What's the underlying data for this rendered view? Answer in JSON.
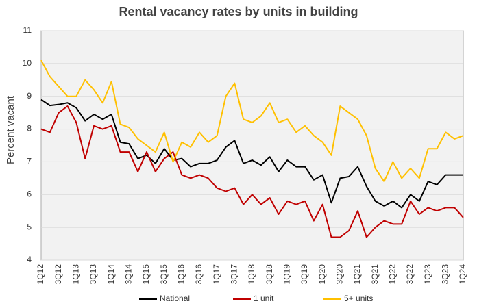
{
  "chart_data": {
    "type": "line",
    "title": "Rental vacancy rates by units in building",
    "y_label": "Percent vacant",
    "categories": [
      "1Q12",
      null,
      "3Q12",
      null,
      "1Q13",
      null,
      "3Q13",
      null,
      "1Q14",
      null,
      "3Q14",
      null,
      "1Q15",
      null,
      "3Q15",
      null,
      "1Q16",
      null,
      "3Q16",
      null,
      "1Q17",
      null,
      "3Q17",
      null,
      "1Q18",
      null,
      "3Q18",
      null,
      "1Q19",
      null,
      "3Q19",
      null,
      "1Q20",
      null,
      "3Q20",
      null,
      "1Q21",
      null,
      "3Q21",
      null,
      "1Q22",
      null,
      "3Q22",
      null,
      "1Q23",
      null,
      "3Q23",
      null,
      "1Q24"
    ],
    "series": [
      {
        "name": "National",
        "color": "#000000",
        "values": [
          8.9,
          8.72,
          8.75,
          8.8,
          8.65,
          8.25,
          8.45,
          8.3,
          8.45,
          7.6,
          7.55,
          7.1,
          7.2,
          6.95,
          7.4,
          7.05,
          7.1,
          6.85,
          6.95,
          6.95,
          7.05,
          7.45,
          7.65,
          6.95,
          7.05,
          6.9,
          7.15,
          6.7,
          7.05,
          6.85,
          6.85,
          6.45,
          6.6,
          5.75,
          6.5,
          6.55,
          6.85,
          6.25,
          5.8,
          5.65,
          5.8,
          5.6,
          6.0,
          5.8,
          6.4,
          6.3,
          6.6,
          6.6,
          6.6
        ]
      },
      {
        "name": "1 unit",
        "color": "#c00000",
        "values": [
          8.0,
          7.9,
          8.5,
          8.7,
          8.2,
          7.1,
          8.1,
          8.0,
          8.1,
          7.3,
          7.3,
          6.7,
          7.3,
          6.7,
          7.1,
          7.3,
          6.6,
          6.5,
          6.6,
          6.5,
          6.2,
          6.1,
          6.2,
          5.7,
          6.0,
          5.7,
          5.9,
          5.4,
          5.8,
          5.7,
          5.8,
          5.2,
          5.7,
          4.7,
          4.7,
          4.9,
          5.5,
          4.7,
          5.0,
          5.2,
          5.1,
          5.1,
          5.8,
          5.4,
          5.6,
          5.5,
          5.6,
          5.6,
          5.3
        ]
      },
      {
        "name": "5+ units",
        "color": "#ffc000",
        "values": [
          10.1,
          9.6,
          9.3,
          9.0,
          9.0,
          9.5,
          9.2,
          8.8,
          9.45,
          8.15,
          8.05,
          7.7,
          7.5,
          7.3,
          7.9,
          7.0,
          7.6,
          7.45,
          7.9,
          7.6,
          7.8,
          9.0,
          9.4,
          8.3,
          8.2,
          8.4,
          8.8,
          8.2,
          8.3,
          7.9,
          8.1,
          7.8,
          7.6,
          7.2,
          8.7,
          8.5,
          8.3,
          7.8,
          6.8,
          6.4,
          7.0,
          6.5,
          6.8,
          6.5,
          7.4,
          7.4,
          7.9,
          7.7,
          7.8
        ]
      }
    ],
    "ylim": [
      4,
      11
    ],
    "yticks": [
      4,
      5,
      6,
      7,
      8,
      9,
      10,
      11
    ],
    "grid": true,
    "legend": "bottom"
  }
}
